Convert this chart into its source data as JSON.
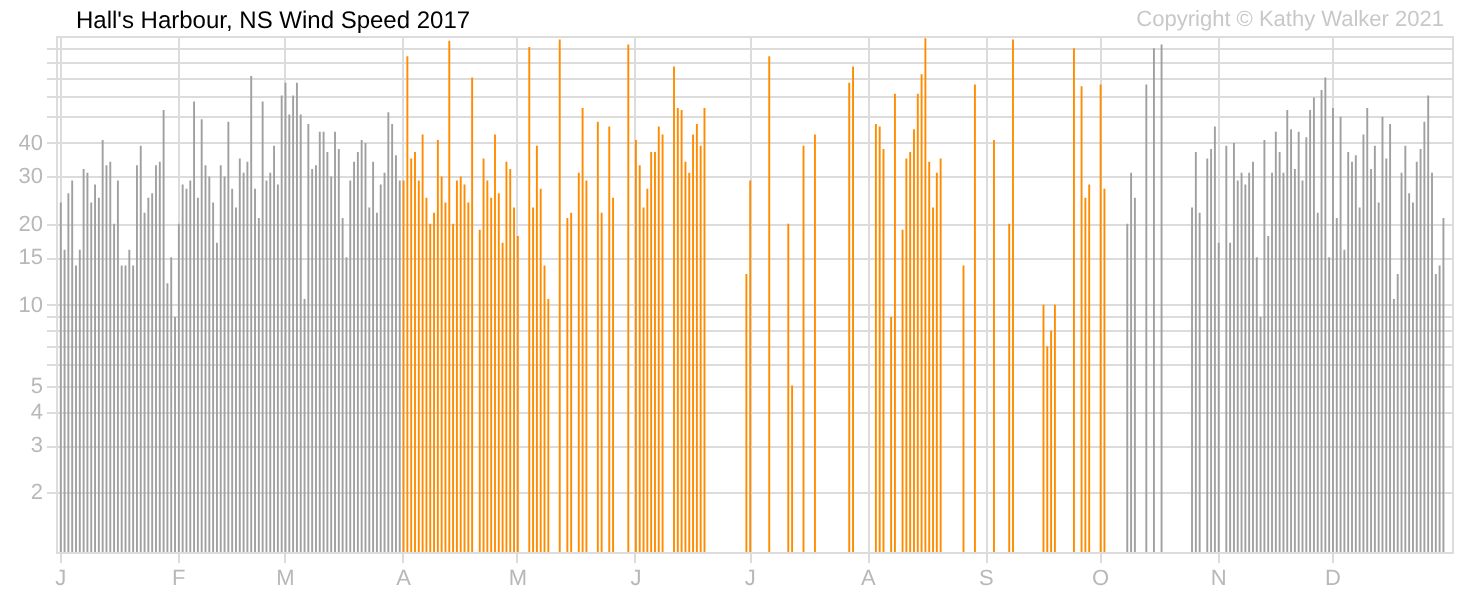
{
  "chart_data": {
    "type": "bar",
    "title": "Hall's Harbour, NS Wind Speed 2017",
    "annotations": [
      "Copyright © Kathy Walker 2021"
    ],
    "categories": [
      "J",
      null,
      null,
      null,
      null,
      null,
      null,
      null,
      null,
      null,
      null,
      null,
      null,
      null,
      null,
      null,
      null,
      null,
      null,
      null,
      null,
      null,
      null,
      null,
      null,
      null,
      null,
      null,
      null,
      null,
      null,
      "F",
      null,
      null,
      null,
      null,
      null,
      null,
      null,
      null,
      null,
      null,
      null,
      null,
      null,
      null,
      null,
      null,
      null,
      null,
      null,
      null,
      null,
      null,
      null,
      null,
      null,
      null,
      null,
      "M",
      null,
      null,
      null,
      null,
      null,
      null,
      null,
      null,
      null,
      null,
      null,
      null,
      null,
      null,
      null,
      null,
      null,
      null,
      null,
      null,
      null,
      null,
      null,
      null,
      null,
      null,
      null,
      null,
      null,
      null,
      "A",
      null,
      null,
      null,
      null,
      null,
      null,
      null,
      null,
      null,
      null,
      null,
      null,
      null,
      null,
      null,
      null,
      null,
      null,
      null,
      null,
      null,
      null,
      null,
      null,
      null,
      null,
      null,
      null,
      null,
      "M",
      null,
      null,
      null,
      null,
      null,
      null,
      null,
      null,
      null,
      null,
      null,
      null,
      null,
      null,
      null,
      null,
      null,
      null,
      null,
      null,
      null,
      null,
      null,
      null,
      null,
      null,
      null,
      null,
      null,
      null,
      "J",
      null,
      null,
      null,
      null,
      null,
      null,
      null,
      null,
      null,
      null,
      null,
      null,
      null,
      null,
      null,
      null,
      null,
      null,
      null,
      null,
      null,
      null,
      null,
      null,
      null,
      null,
      null,
      null,
      null,
      "J",
      null,
      null,
      null,
      null,
      null,
      null,
      null,
      null,
      null,
      null,
      null,
      null,
      null,
      null,
      null,
      null,
      null,
      null,
      null,
      null,
      null,
      null,
      null,
      null,
      null,
      null,
      null,
      null,
      null,
      null,
      "A",
      null,
      null,
      null,
      null,
      null,
      null,
      null,
      null,
      null,
      null,
      null,
      null,
      null,
      null,
      null,
      null,
      null,
      null,
      null,
      null,
      null,
      null,
      null,
      null,
      null,
      null,
      null,
      null,
      null,
      null,
      "S",
      null,
      null,
      null,
      null,
      null,
      null,
      null,
      null,
      null,
      null,
      null,
      null,
      null,
      null,
      null,
      null,
      null,
      null,
      null,
      null,
      null,
      null,
      null,
      null,
      null,
      null,
      null,
      null,
      null,
      "O",
      null,
      null,
      null,
      null,
      null,
      null,
      null,
      null,
      null,
      null,
      null,
      null,
      null,
      null,
      null,
      null,
      null,
      null,
      null,
      null,
      null,
      null,
      null,
      null,
      null,
      null,
      null,
      null,
      null,
      null,
      "N",
      null,
      null,
      null,
      null,
      null,
      null,
      null,
      null,
      null,
      null,
      null,
      null,
      null,
      null,
      null,
      null,
      null,
      null,
      null,
      null,
      null,
      null,
      null,
      null,
      null,
      null,
      null,
      null,
      null,
      "D",
      null,
      null,
      null,
      null,
      null,
      null,
      null,
      null,
      null,
      null,
      null,
      null,
      null,
      null,
      null,
      null,
      null,
      null,
      null,
      null,
      null,
      null,
      null,
      null,
      null,
      null,
      null,
      null,
      null,
      null
    ],
    "ylim": [
      1.2,
      100
    ],
    "log": "y",
    "yticks": [
      2,
      3,
      4,
      5,
      {
        "value": 6,
        "label": null
      },
      {
        "value": 7,
        "label": null
      },
      {
        "value": 8,
        "label": null
      },
      {
        "value": 9,
        "label": null
      },
      10,
      15,
      20,
      30,
      40,
      {
        "value": 50,
        "label": null
      },
      {
        "value": 60,
        "label": null
      },
      {
        "value": 70,
        "label": null
      },
      {
        "value": 80,
        "label": null
      },
      {
        "value": 90,
        "label": null
      }
    ],
    "grid": true,
    "series": [
      {
        "color": "#a0a0a0",
        "values": [
          24,
          16,
          26,
          29,
          14,
          16,
          32,
          31,
          24,
          28,
          25,
          41,
          33,
          34,
          20,
          29,
          14,
          14,
          16,
          14,
          33,
          39,
          22,
          25,
          26,
          33,
          34,
          53,
          12,
          15,
          9,
          20,
          28,
          27,
          29,
          57,
          25,
          49,
          33,
          30,
          24,
          17,
          33,
          30,
          48,
          27,
          23,
          35,
          31,
          34,
          71,
          27,
          21,
          57,
          29,
          31,
          39,
          28,
          60,
          67,
          51,
          60,
          67,
          51,
          10.5,
          47,
          32,
          33,
          44,
          44,
          37,
          30,
          44,
          38,
          21,
          15,
          29,
          34,
          37,
          41,
          40,
          23,
          34,
          22,
          28,
          31,
          52,
          47,
          36,
          29,
          null,
          null,
          null,
          null,
          null,
          null,
          null,
          null,
          null,
          null,
          null,
          null,
          null,
          null,
          null,
          null,
          null,
          null,
          null,
          null,
          null,
          null,
          null,
          null,
          null,
          null,
          null,
          null,
          null,
          null,
          null,
          null,
          null,
          null,
          null,
          null,
          null,
          null,
          null,
          null,
          null,
          null,
          null,
          null,
          null,
          null,
          null,
          null,
          null,
          null,
          null,
          null,
          null,
          null,
          null,
          null,
          null,
          null,
          null,
          null,
          null,
          null,
          null,
          null,
          null,
          null,
          null,
          null,
          null,
          null,
          null,
          null,
          null,
          null,
          null,
          null,
          null,
          null,
          null,
          null,
          null,
          null,
          null,
          null,
          null,
          null,
          null,
          null,
          null,
          null,
          null,
          null,
          null,
          null,
          null,
          null,
          null,
          null,
          null,
          null,
          null,
          null,
          null,
          null,
          null,
          null,
          null,
          null,
          null,
          null,
          null,
          null,
          null,
          null,
          null,
          null,
          null,
          null,
          null,
          null,
          null,
          null,
          null,
          null,
          null,
          null,
          null,
          null,
          null,
          null,
          null,
          null,
          null,
          null,
          null,
          null,
          null,
          null,
          null,
          null,
          null,
          null,
          null,
          null,
          null,
          null,
          null,
          null,
          null,
          null,
          null,
          null,
          null,
          null,
          null,
          null,
          null,
          null,
          null,
          null,
          null,
          null,
          null,
          null,
          null,
          null,
          null,
          null,
          null,
          null,
          null,
          null,
          null,
          null,
          null,
          null,
          null,
          null,
          null,
          null,
          null,
          null,
          null,
          null,
          null,
          null,
          null,
          null,
          null,
          null,
          20,
          31,
          25,
          null,
          null,
          66,
          null,
          90,
          null,
          93,
          null,
          null,
          null,
          null,
          null,
          null,
          null,
          23,
          37,
          22,
          null,
          35,
          38,
          46,
          17,
          null,
          39,
          17,
          40,
          29,
          31,
          28,
          31,
          34,
          15,
          9,
          41,
          18,
          31,
          44,
          37,
          31,
          53,
          45,
          32,
          44,
          29,
          42,
          53,
          59,
          22,
          63,
          70,
          15,
          54,
          21,
          50,
          16,
          37,
          34,
          36,
          23,
          43,
          54,
          32,
          39,
          24,
          50,
          35,
          47,
          10.5,
          13,
          31,
          39,
          26,
          24,
          34,
          38,
          48,
          60,
          31,
          13,
          14,
          21,
          null
        ]
      },
      {
        "color": "#ff8c00",
        "values": [
          null,
          null,
          null,
          null,
          null,
          null,
          null,
          null,
          null,
          null,
          null,
          null,
          null,
          null,
          null,
          null,
          null,
          null,
          null,
          null,
          null,
          null,
          null,
          null,
          null,
          null,
          null,
          null,
          null,
          null,
          null,
          null,
          null,
          null,
          null,
          null,
          null,
          null,
          null,
          null,
          null,
          null,
          null,
          null,
          null,
          null,
          null,
          null,
          null,
          null,
          null,
          null,
          null,
          null,
          null,
          null,
          null,
          null,
          null,
          null,
          null,
          null,
          null,
          null,
          null,
          null,
          null,
          null,
          null,
          null,
          null,
          null,
          null,
          null,
          null,
          null,
          null,
          null,
          null,
          null,
          null,
          null,
          null,
          null,
          null,
          null,
          null,
          null,
          null,
          null,
          29,
          84,
          35,
          37,
          29,
          43,
          25,
          20,
          22,
          41,
          30,
          24,
          96,
          20,
          29,
          30,
          28,
          24,
          70,
          null,
          19,
          35,
          29,
          25,
          43,
          26,
          17,
          34,
          32,
          23,
          18,
          null,
          null,
          91,
          23,
          39,
          27,
          14,
          10.5,
          null,
          null,
          97,
          null,
          21,
          22,
          null,
          31,
          54,
          29,
          null,
          null,
          48,
          22,
          null,
          46,
          25,
          null,
          null,
          null,
          93,
          null,
          41,
          33,
          23,
          27,
          37,
          37,
          46,
          43,
          null,
          null,
          77,
          54,
          53,
          34,
          31,
          43,
          47,
          39,
          54,
          null,
          null,
          null,
          null,
          null,
          null,
          null,
          null,
          null,
          null,
          13,
          29,
          null,
          null,
          null,
          null,
          84,
          null,
          null,
          null,
          null,
          20,
          5,
          null,
          null,
          39,
          null,
          null,
          43,
          null,
          null,
          null,
          null,
          null,
          null,
          null,
          null,
          67,
          77,
          null,
          null,
          null,
          null,
          null,
          47,
          46,
          38,
          null,
          9,
          61,
          null,
          19,
          35,
          37,
          45,
          61,
          72,
          98,
          34,
          23,
          31,
          35,
          null,
          null,
          null,
          null,
          null,
          14,
          null,
          null,
          66,
          null,
          null,
          null,
          null,
          41,
          null,
          null,
          null,
          20,
          97,
          null,
          null,
          null,
          null,
          null,
          null,
          null,
          10,
          7,
          8,
          10,
          null,
          null,
          null,
          null,
          90,
          null,
          65,
          25,
          28,
          null,
          null,
          66,
          27,
          null,
          null,
          null,
          null,
          null,
          null,
          null,
          null,
          null,
          null,
          null,
          null,
          null,
          null,
          null,
          null,
          null,
          null,
          null,
          null,
          null,
          null,
          null,
          null,
          null,
          null,
          null,
          null,
          null,
          null,
          null,
          null,
          null,
          null,
          null,
          null,
          null,
          null,
          null,
          null,
          null,
          null,
          null,
          null,
          null,
          null,
          null,
          null,
          null,
          null,
          null,
          null,
          null,
          null,
          null,
          null,
          null,
          null,
          null,
          null,
          null,
          null,
          null,
          null,
          null,
          null,
          null,
          null,
          null,
          null,
          null,
          null,
          null,
          null,
          null,
          null,
          null,
          null,
          null,
          null,
          null,
          null,
          null,
          null,
          null,
          null,
          null,
          null,
          null,
          null
        ]
      }
    ]
  }
}
